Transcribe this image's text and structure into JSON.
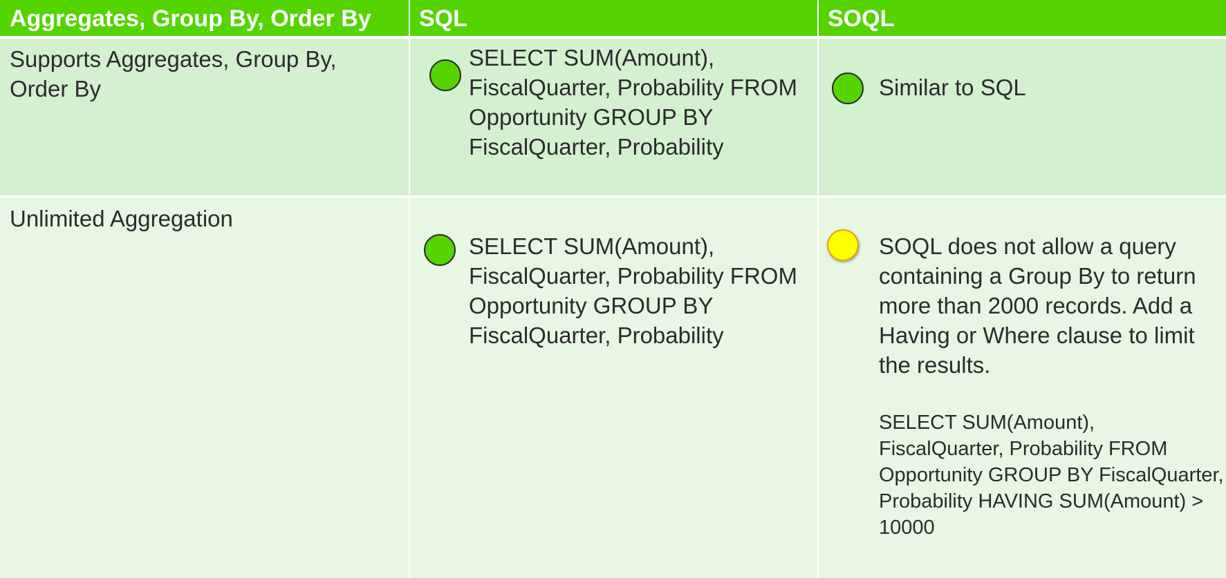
{
  "header": {
    "col1": "Aggregates, Group By, Order By",
    "col2": "SQL",
    "col3": "SOQL"
  },
  "rows": [
    {
      "feature": "Supports Aggregates, Group By, Order By",
      "sql": {
        "status_color": "#55d400",
        "text": "SELECT SUM(Amount), FiscalQuarter, Probability FROM Opportunity GROUP BY FiscalQuarter, Probability"
      },
      "soql": {
        "status_color": "#55d400",
        "text": "Similar to SQL"
      }
    },
    {
      "feature": "Unlimited Aggregation",
      "sql": {
        "status_color": "#55d400",
        "text": "SELECT SUM(Amount), FiscalQuarter, Probability FROM Opportunity GROUP BY FiscalQuarter, Probability"
      },
      "soql": {
        "status_color": "#ffff00",
        "text": "SOQL does not allow a query containing a Group By to return more than 2000 records.  Add a Having or Where clause to limit the results.",
        "example": "SELECT SUM(Amount), FiscalQuarter, Probability FROM Opportunity GROUP BY FiscalQuarter, Probability HAVING SUM(Amount) > 10000"
      }
    }
  ]
}
